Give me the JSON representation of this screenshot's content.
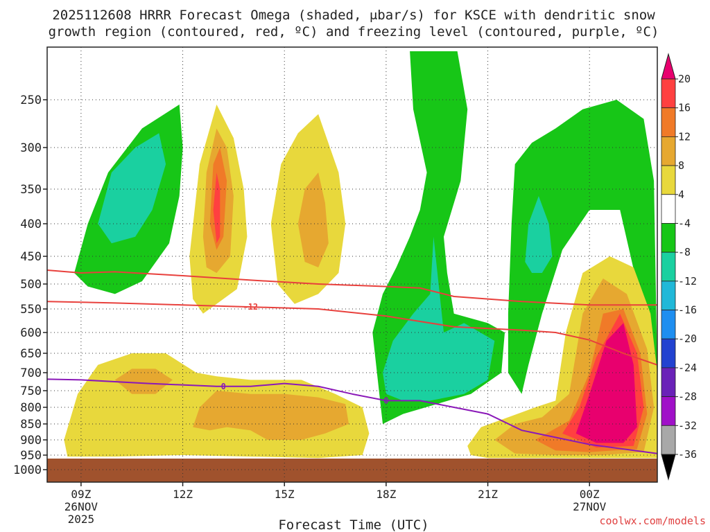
{
  "chart_data": {
    "type": "heatmap",
    "title_line1": "2025112608 HRRR Forecast Omega (shaded, μbar/s) for KSCE with dendritic snow",
    "title_line2": "growth region (contoured, red, ºC) and freezing level (contoured, purple, ºC)",
    "xlabel": "Forecast Time (UTC)",
    "credit": "coolwx.com/models",
    "y_ticks": [
      250,
      300,
      350,
      400,
      450,
      500,
      550,
      600,
      650,
      700,
      750,
      800,
      850,
      900,
      950,
      1000
    ],
    "y_range": [
      1000,
      200
    ],
    "x_ticks": [
      {
        "hour": 9,
        "label": "09Z",
        "date1": "26NOV",
        "date2": "2025"
      },
      {
        "hour": 12,
        "label": "12Z",
        "date1": "",
        "date2": ""
      },
      {
        "hour": 15,
        "label": "15Z",
        "date1": "",
        "date2": ""
      },
      {
        "hour": 18,
        "label": "18Z",
        "date1": "",
        "date2": ""
      },
      {
        "hour": 21,
        "label": "21Z",
        "date1": "",
        "date2": ""
      },
      {
        "hour": 24,
        "label": "00Z",
        "date1": "27NOV",
        "date2": ""
      }
    ],
    "x_range": [
      8,
      26
    ],
    "colorbar": {
      "labels": [
        "20",
        "16",
        "12",
        "8",
        "4",
        "-4",
        "-8",
        "-12",
        "-16",
        "-20",
        "-24",
        "-28",
        "-32",
        "-36"
      ],
      "colors": [
        "#e8006e",
        "#ff4040",
        "#f07a28",
        "#e6a830",
        "#e8d83c",
        "#ffffff",
        "#17c617",
        "#1ad0a0",
        "#20b8d8",
        "#1e8ef0",
        "#2242d0",
        "#6a22b8",
        "#a010c8",
        "#a8a8a8",
        "#000000"
      ]
    },
    "contours": [
      {
        "label": "-12",
        "color": "#e8403c",
        "points": [
          [
            8,
            535
          ],
          [
            10,
            538
          ],
          [
            12,
            542
          ],
          [
            14,
            546
          ],
          [
            16,
            550
          ],
          [
            18,
            565
          ],
          [
            20,
            588
          ],
          [
            22,
            595
          ],
          [
            23,
            600
          ],
          [
            24,
            618
          ],
          [
            25,
            650
          ],
          [
            26,
            680
          ]
        ]
      },
      {
        "label": "",
        "color": "#e8403c",
        "points": [
          [
            8,
            475
          ],
          [
            9,
            480
          ],
          [
            10,
            478
          ],
          [
            12,
            485
          ],
          [
            14,
            493
          ],
          [
            16,
            500
          ],
          [
            18,
            505
          ],
          [
            19,
            508
          ],
          [
            20,
            525
          ],
          [
            21,
            530
          ],
          [
            22,
            535
          ],
          [
            24,
            542
          ],
          [
            26,
            542
          ]
        ]
      },
      {
        "label": "0",
        "color": "#8a18b8",
        "points": [
          [
            8,
            718
          ],
          [
            9,
            720
          ],
          [
            11,
            730
          ],
          [
            13,
            738
          ],
          [
            14,
            738
          ],
          [
            15,
            730
          ],
          [
            16,
            738
          ],
          [
            17,
            760
          ],
          [
            18,
            780
          ],
          [
            19,
            780
          ],
          [
            20,
            800
          ],
          [
            21,
            820
          ],
          [
            22,
            870
          ],
          [
            24,
            915
          ],
          [
            26,
            945
          ]
        ]
      }
    ],
    "omega_regions": [
      {
        "value": "-8",
        "color": "#17c617",
        "points": [
          [
            8.8,
            480
          ],
          [
            9.2,
            400
          ],
          [
            9.8,
            330
          ],
          [
            10.8,
            280
          ],
          [
            11.9,
            255
          ],
          [
            12,
            300
          ],
          [
            11.9,
            360
          ],
          [
            11.6,
            430
          ],
          [
            10.8,
            495
          ],
          [
            10,
            520
          ],
          [
            9.2,
            505
          ]
        ]
      },
      {
        "value": "-12",
        "color": "#1ad0a0",
        "points": [
          [
            9.5,
            400
          ],
          [
            9.9,
            330
          ],
          [
            10.6,
            300
          ],
          [
            11.3,
            285
          ],
          [
            11.5,
            320
          ],
          [
            11.1,
            380
          ],
          [
            10.6,
            420
          ],
          [
            9.9,
            430
          ]
        ]
      },
      {
        "value": "4",
        "color": "#e8d83c",
        "points": [
          [
            12.2,
            450
          ],
          [
            12.5,
            320
          ],
          [
            13,
            255
          ],
          [
            13.5,
            290
          ],
          [
            13.8,
            350
          ],
          [
            13.9,
            420
          ],
          [
            13.6,
            510
          ],
          [
            13,
            540
          ],
          [
            12.6,
            560
          ],
          [
            12.3,
            530
          ]
        ]
      },
      {
        "value": "8",
        "color": "#e6a830",
        "points": [
          [
            12.6,
            420
          ],
          [
            12.7,
            330
          ],
          [
            13,
            280
          ],
          [
            13.3,
            300
          ],
          [
            13.5,
            360
          ],
          [
            13.4,
            450
          ],
          [
            13,
            480
          ],
          [
            12.7,
            470
          ]
        ]
      },
      {
        "value": "12",
        "color": "#f07a28",
        "points": [
          [
            12.8,
            400
          ],
          [
            12.9,
            320
          ],
          [
            13.1,
            300
          ],
          [
            13.3,
            340
          ],
          [
            13.2,
            420
          ],
          [
            13,
            440
          ]
        ]
      },
      {
        "value": "16",
        "color": "#ff4040",
        "points": [
          [
            12.9,
            380
          ],
          [
            13,
            330
          ],
          [
            13.1,
            350
          ],
          [
            13.1,
            420
          ],
          [
            13,
            430
          ]
        ]
      },
      {
        "value": "4",
        "color": "#e8d83c",
        "points": [
          [
            14.6,
            400
          ],
          [
            14.9,
            320
          ],
          [
            15.4,
            285
          ],
          [
            16,
            265
          ],
          [
            16.6,
            330
          ],
          [
            16.8,
            400
          ],
          [
            16.6,
            480
          ],
          [
            16,
            520
          ],
          [
            15.3,
            540
          ],
          [
            14.8,
            500
          ]
        ]
      },
      {
        "value": "8",
        "color": "#e6a830",
        "points": [
          [
            15.4,
            400
          ],
          [
            15.6,
            350
          ],
          [
            16,
            330
          ],
          [
            16.2,
            370
          ],
          [
            16.3,
            430
          ],
          [
            16,
            470
          ],
          [
            15.6,
            460
          ]
        ]
      },
      {
        "value": "-8",
        "color": "#17c617",
        "points": [
          [
            17.6,
            600
          ],
          [
            17.9,
            520
          ],
          [
            18.3,
            470
          ],
          [
            18.7,
            420
          ],
          [
            19,
            380
          ],
          [
            19.2,
            330
          ],
          [
            18.8,
            260
          ],
          [
            18.7,
            200
          ],
          [
            20.1,
            200
          ],
          [
            20.4,
            260
          ],
          [
            20.2,
            340
          ],
          [
            19.7,
            420
          ],
          [
            19.8,
            480
          ],
          [
            20,
            560
          ],
          [
            21,
            580
          ],
          [
            21.5,
            600
          ],
          [
            21.4,
            700
          ],
          [
            20.5,
            760
          ],
          [
            19.5,
            790
          ],
          [
            18.5,
            820
          ],
          [
            17.9,
            850
          ],
          [
            17.8,
            760
          ]
        ]
      },
      {
        "value": "-12",
        "color": "#1ad0a0",
        "points": [
          [
            17.9,
            700
          ],
          [
            18.2,
            620
          ],
          [
            18.8,
            560
          ],
          [
            19.3,
            520
          ],
          [
            19.4,
            420
          ],
          [
            19.7,
            600
          ],
          [
            20.3,
            580
          ],
          [
            21.2,
            620
          ],
          [
            21,
            720
          ],
          [
            20.3,
            760
          ],
          [
            19.3,
            780
          ],
          [
            18.5,
            780
          ],
          [
            18,
            760
          ]
        ]
      },
      {
        "value": "-8",
        "color": "#17c617",
        "points": [
          [
            21.6,
            700
          ],
          [
            21.6,
            560
          ],
          [
            21.7,
            400
          ],
          [
            21.8,
            320
          ],
          [
            22.3,
            295
          ],
          [
            23,
            280
          ],
          [
            23.8,
            260
          ],
          [
            24.8,
            250
          ],
          [
            25.6,
            270
          ],
          [
            25.9,
            340
          ],
          [
            26,
            700
          ],
          [
            25.4,
            500
          ],
          [
            24.9,
            380
          ],
          [
            24,
            380
          ],
          [
            23.2,
            440
          ],
          [
            22.6,
            560
          ],
          [
            22.2,
            680
          ],
          [
            22,
            760
          ]
        ]
      },
      {
        "value": "-12",
        "color": "#1ad0a0",
        "points": [
          [
            22.1,
            460
          ],
          [
            22.2,
            400
          ],
          [
            22.5,
            360
          ],
          [
            22.8,
            400
          ],
          [
            22.9,
            450
          ],
          [
            22.6,
            480
          ],
          [
            22.3,
            480
          ]
        ]
      },
      {
        "value": "4",
        "color": "#e8d83c",
        "points": [
          [
            8.5,
            900
          ],
          [
            8.9,
            760
          ],
          [
            9.5,
            680
          ],
          [
            10.5,
            650
          ],
          [
            11.5,
            650
          ],
          [
            12.4,
            700
          ],
          [
            13,
            710
          ],
          [
            14,
            720
          ],
          [
            15.5,
            720
          ],
          [
            16.5,
            760
          ],
          [
            17.3,
            800
          ],
          [
            17.5,
            880
          ],
          [
            17.3,
            950
          ],
          [
            16,
            960
          ],
          [
            14,
            955
          ],
          [
            12,
            950
          ],
          [
            10,
            955
          ],
          [
            8.6,
            955
          ]
        ]
      },
      {
        "value": "8",
        "color": "#e6a830",
        "points": [
          [
            10,
            720
          ],
          [
            10.5,
            690
          ],
          [
            11.2,
            690
          ],
          [
            11.7,
            720
          ],
          [
            11.2,
            760
          ],
          [
            10.5,
            760
          ]
        ]
      },
      {
        "value": "8",
        "color": "#e6a830",
        "points": [
          [
            12.5,
            800
          ],
          [
            13,
            750
          ],
          [
            14,
            760
          ],
          [
            15,
            760
          ],
          [
            16,
            770
          ],
          [
            16.8,
            790
          ],
          [
            16.9,
            850
          ],
          [
            16.2,
            880
          ],
          [
            15.5,
            900
          ],
          [
            14.5,
            900
          ],
          [
            14,
            870
          ],
          [
            13.3,
            860
          ],
          [
            12.8,
            870
          ],
          [
            12.3,
            860
          ]
        ]
      },
      {
        "value": "4",
        "color": "#e8d83c",
        "points": [
          [
            20.4,
            920
          ],
          [
            20.8,
            860
          ],
          [
            21.6,
            830
          ],
          [
            22.4,
            800
          ],
          [
            23,
            780
          ],
          [
            23.3,
            600
          ],
          [
            23.8,
            480
          ],
          [
            24.6,
            450
          ],
          [
            25.3,
            470
          ],
          [
            25.8,
            560
          ],
          [
            26,
            700
          ],
          [
            26,
            960
          ],
          [
            24,
            960
          ],
          [
            22,
            960
          ],
          [
            21,
            960
          ],
          [
            20.5,
            950
          ]
        ]
      },
      {
        "value": "8",
        "color": "#e6a830",
        "points": [
          [
            21.2,
            900
          ],
          [
            21.8,
            850
          ],
          [
            22.6,
            830
          ],
          [
            23.4,
            760
          ],
          [
            23.8,
            560
          ],
          [
            24.4,
            490
          ],
          [
            25.1,
            520
          ],
          [
            25.7,
            640
          ],
          [
            25.9,
            800
          ],
          [
            25.6,
            940
          ],
          [
            24.4,
            950
          ],
          [
            23,
            950
          ],
          [
            21.8,
            945
          ]
        ]
      },
      {
        "value": "12",
        "color": "#f07a28",
        "points": [
          [
            22.4,
            900
          ],
          [
            23.4,
            840
          ],
          [
            24,
            700
          ],
          [
            24.4,
            560
          ],
          [
            25,
            550
          ],
          [
            25.5,
            650
          ],
          [
            25.7,
            820
          ],
          [
            25.4,
            930
          ],
          [
            24,
            940
          ],
          [
            23,
            935
          ]
        ]
      },
      {
        "value": "16",
        "color": "#ff4040",
        "points": [
          [
            23.2,
            880
          ],
          [
            23.7,
            800
          ],
          [
            24.2,
            660
          ],
          [
            24.9,
            560
          ],
          [
            25.4,
            650
          ],
          [
            25.6,
            800
          ],
          [
            25.3,
            920
          ],
          [
            24.2,
            925
          ]
        ]
      },
      {
        "value": "20",
        "color": "#e8006e",
        "points": [
          [
            23.6,
            880
          ],
          [
            24,
            760
          ],
          [
            24.5,
            620
          ],
          [
            25,
            580
          ],
          [
            25.3,
            680
          ],
          [
            25.4,
            860
          ],
          [
            25,
            910
          ],
          [
            24.2,
            910
          ]
        ]
      }
    ]
  }
}
